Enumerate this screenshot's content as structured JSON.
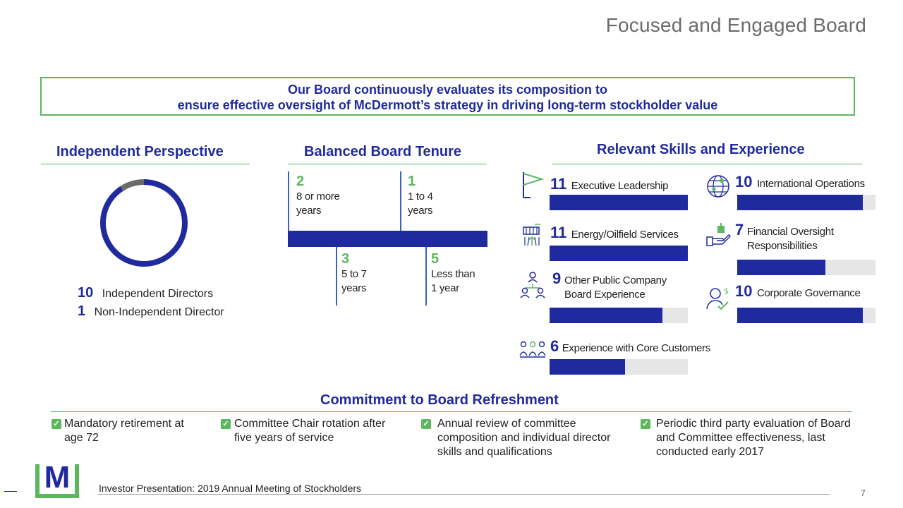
{
  "title": "Focused and Engaged Board",
  "banner": {
    "line1": "Our Board continuously evaluates its composition to",
    "line2": "ensure effective oversight of McDermott’s strategy in driving long-term stockholder value"
  },
  "independent": {
    "heading": "Independent Perspective",
    "items": [
      {
        "count": "10",
        "label": "Independent Directors"
      },
      {
        "count": "1",
        "label": "Non-Independent Director"
      }
    ]
  },
  "tenure": {
    "heading": "Balanced Board Tenure",
    "items": [
      {
        "count": "2",
        "label": "8 or more years"
      },
      {
        "count": "1",
        "label": "1 to 4 years"
      },
      {
        "count": "3",
        "label": "5 to 7 years"
      },
      {
        "count": "5",
        "label": "Less than 1 year"
      }
    ]
  },
  "skills": {
    "heading": "Relevant Skills and Experience",
    "items": [
      {
        "count": "11",
        "label": "Executive Leadership",
        "icon": "flag-icon"
      },
      {
        "count": "11",
        "label": "Energy/Oilfield Services",
        "icon": "oil-platform-icon"
      },
      {
        "count": "9",
        "label": "Other Public Company Board Experience",
        "icon": "org-chart-icon"
      },
      {
        "count": "6",
        "label": "Experience with Core Customers",
        "icon": "people-group-icon"
      },
      {
        "count": "10",
        "label": "International Operations",
        "icon": "globe-icon"
      },
      {
        "count": "7",
        "label": "Financial Oversight Responsibilities",
        "icon": "hand-money-icon"
      },
      {
        "count": "10",
        "label": "Corporate Governance",
        "icon": "person-check-icon"
      }
    ]
  },
  "refreshment": {
    "heading": "Commitment to Board Refreshment",
    "items": [
      "Mandatory retirement at age 72",
      "Committee Chair rotation after five years of service",
      "Annual review of committee composition and individual director skills and qualifications",
      "Periodic third party evaluation of Board and Committee effectiveness, last conducted early 2017"
    ]
  },
  "footer": {
    "logo_letter": "M",
    "text": "Investor Presentation: 2019 Annual Meeting of Stockholders",
    "page": "7"
  },
  "colors": {
    "navy": "#1f2a9e",
    "green": "#5cb85c",
    "gray": "#6b6b6b",
    "track": "#e6e6e6"
  },
  "chart_data": [
    {
      "type": "pie",
      "categories": [
        "Independent Directors",
        "Non-Independent Director"
      ],
      "values": [
        10,
        1
      ],
      "colors": [
        "#1f2a9e",
        "#6b6b6b"
      ]
    },
    {
      "type": "bar",
      "categories": [
        "Executive Leadership",
        "Energy/Oilfield Services",
        "Other Public Company Board Experience",
        "Experience with Core Customers",
        "International Operations",
        "Financial Oversight Responsibilities",
        "Corporate Governance"
      ],
      "values": [
        11,
        11,
        9,
        6,
        10,
        7,
        10
      ],
      "xlim": [
        0,
        11
      ]
    },
    {
      "type": "table",
      "categories": [
        "8 or more years",
        "1 to 4 years",
        "5 to 7 years",
        "Less than 1 year"
      ],
      "values": [
        2,
        1,
        3,
        5
      ]
    }
  ]
}
